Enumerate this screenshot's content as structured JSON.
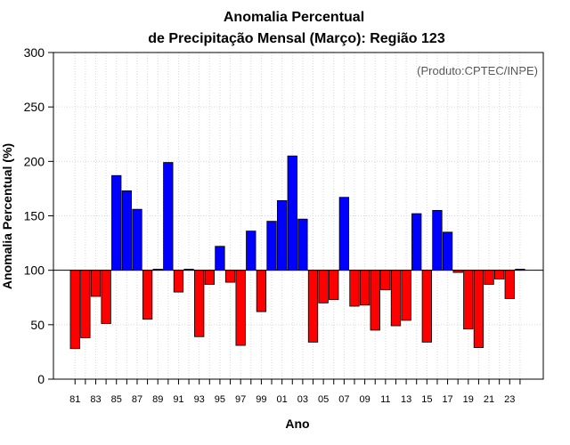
{
  "chart_data": {
    "type": "bar",
    "title": "Anomalia Percentual",
    "subtitle": "de Precipitação Mensal (Março): Região 123",
    "xlabel": "Ano",
    "ylabel": "Anomalia Percentual (%)",
    "credit": "(Produto:CPTEC/INPE)",
    "ylim": [
      0,
      300
    ],
    "yticks": [
      "0",
      "50",
      "100",
      "150",
      "200",
      "250",
      "300"
    ],
    "reference": 100,
    "grid": true,
    "colors": {
      "above": "#0000ff",
      "below": "#ff0000",
      "edge": "#000000",
      "grid": "#d8d8d8"
    },
    "categories": [
      "81",
      "82",
      "83",
      "84",
      "85",
      "86",
      "87",
      "88",
      "89",
      "90",
      "91",
      "92",
      "93",
      "94",
      "95",
      "96",
      "97",
      "98",
      "99",
      "00",
      "01",
      "02",
      "03",
      "04",
      "05",
      "06",
      "07",
      "08",
      "09",
      "10",
      "11",
      "12",
      "13",
      "14",
      "15",
      "16",
      "17",
      "18",
      "19",
      "20",
      "21",
      "22",
      "23",
      "24"
    ],
    "xtick_labels": [
      "81",
      "83",
      "85",
      "87",
      "89",
      "91",
      "93",
      "95",
      "97",
      "99",
      "01",
      "03",
      "05",
      "07",
      "09",
      "11",
      "13",
      "15",
      "17",
      "19",
      "21",
      "23"
    ],
    "values": [
      28,
      38,
      76,
      51,
      187,
      173,
      156,
      55,
      101,
      199,
      80,
      101,
      39,
      87,
      122,
      89,
      31,
      136,
      62,
      145,
      164,
      205,
      147,
      34,
      70,
      73,
      167,
      67,
      68,
      45,
      82,
      49,
      54,
      152,
      34,
      155,
      135,
      98,
      46,
      29,
      87,
      92,
      74,
      101
    ]
  }
}
